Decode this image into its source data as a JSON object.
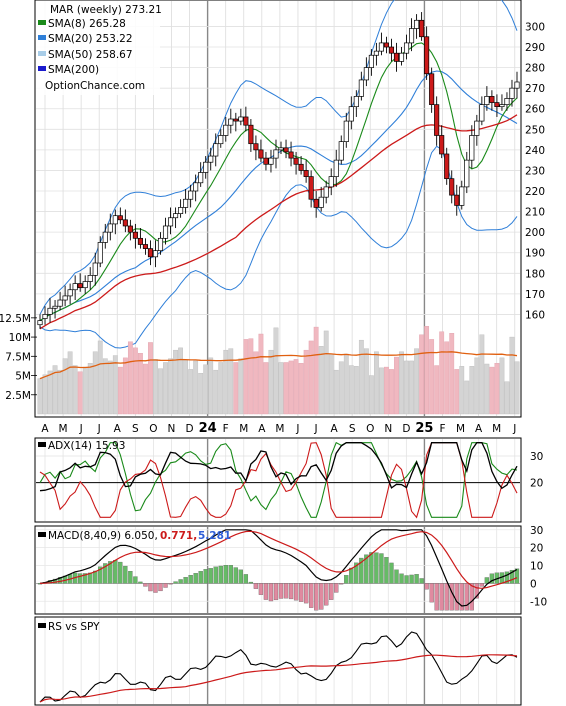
{
  "header": {
    "symbol_label": "MAR (weekly) 273.21",
    "brand": "OptionChance.com"
  },
  "legend": [
    {
      "label": "SMA(8) 265.28",
      "color": "#1a8a1a"
    },
    {
      "label": "SMA(20) 253.22",
      "color": "#2f7fd8"
    },
    {
      "label": "SMA(50) 258.67",
      "color": "#a8cde8"
    },
    {
      "label": "SMA(200)",
      "color": "#1a1acc"
    }
  ],
  "colors": {
    "up_candle": "#ffffff",
    "down_candle": "#cc1a1a",
    "upper_band": "#2f7fd8",
    "sma50": "#cc1a1a",
    "volume_up": "#d4d4d4",
    "volume_down": "#f0b8c0",
    "volume_avg": "#e06010",
    "adx": "#000000",
    "plus_di": "#1a8a1a",
    "minus_di": "#cc1a1a",
    "macd_line": "#000000",
    "macd_signal": "#cc1a1a",
    "hist_pos": "#66bb66",
    "hist_neg": "#e08aa0",
    "rs_line": "#000000",
    "rs_ma": "#cc1a1a"
  },
  "x_axis": {
    "month_labels": [
      "A",
      "M",
      "J",
      "J",
      "A",
      "S",
      "O",
      "N",
      "D",
      "24",
      "F",
      "M",
      "A",
      "M",
      "J",
      "J",
      "A",
      "S",
      "O",
      "N",
      "D",
      "25",
      "F",
      "M",
      "A",
      "M",
      "J"
    ]
  },
  "chart_data": [
    {
      "type": "candlestick",
      "y_ticks": [
        160,
        170,
        180,
        190,
        200,
        210,
        220,
        230,
        240,
        250,
        260,
        270,
        280,
        290,
        300
      ],
      "ylim": [
        150,
        308
      ],
      "close": [
        157,
        160,
        163,
        164,
        167,
        169,
        172,
        175,
        173,
        176,
        179,
        185,
        195,
        200,
        204,
        208,
        206,
        203,
        200,
        197,
        194,
        192,
        188,
        191,
        197,
        203,
        207,
        209,
        212,
        216,
        220,
        224,
        229,
        234,
        237,
        243,
        247,
        252,
        255,
        254,
        256,
        252,
        243,
        240,
        236,
        233,
        236,
        240,
        241,
        239,
        236,
        233,
        230,
        227,
        216,
        212,
        217,
        222,
        227,
        235,
        244,
        254,
        261,
        266,
        274,
        280,
        286,
        288,
        292,
        290,
        287,
        283,
        287,
        292,
        299,
        303,
        295,
        277,
        262,
        247,
        238,
        226,
        218,
        213,
        222,
        235,
        247,
        254,
        262,
        266,
        263,
        261,
        262,
        265,
        270,
        273
      ],
      "open_offset": [
        -2,
        -2,
        -3,
        -1,
        -3,
        -2,
        -3,
        -3,
        2,
        -3,
        -3,
        -6,
        -10,
        -5,
        -4,
        -4,
        2,
        3,
        3,
        3,
        3,
        2,
        4,
        -3,
        -6,
        -6,
        -4,
        -2,
        -3,
        -4,
        -4,
        -4,
        -5,
        -5,
        -3,
        -6,
        -4,
        -5,
        -3,
        1,
        -2,
        4,
        9,
        3,
        4,
        3,
        -3,
        -4,
        -1,
        2,
        3,
        3,
        3,
        3,
        11,
        4,
        -5,
        -5,
        -5,
        -8,
        -9,
        -10,
        -7,
        -5,
        -8,
        -6,
        -6,
        -2,
        -4,
        2,
        3,
        4,
        -4,
        -5,
        -7,
        -4,
        8,
        18,
        15,
        15,
        9,
        12,
        8,
        5,
        -9,
        -13,
        -12,
        -7,
        -8,
        -4,
        3,
        2,
        -1,
        -3,
        -5,
        -3
      ]
    },
    {
      "type": "bar",
      "name": "Volume",
      "y_ticks": [
        "2.5M",
        "5M",
        "7.5M",
        "10M",
        "12.5M"
      ],
      "tick_values": [
        2.5,
        5,
        7.5,
        10,
        12.5
      ],
      "ylim": [
        0,
        13
      ],
      "values": [
        4.6,
        5.1,
        5.6,
        6.3,
        5.7,
        7.2,
        8.1,
        6.3,
        5.5,
        6.1,
        6.6,
        8.1,
        9.5,
        7.2,
        6.9,
        7.6,
        6.1,
        7.3,
        9.4,
        8.6,
        7.9,
        6.5,
        9.3,
        7.1,
        5.9,
        6.7,
        7.2,
        8.3,
        8.6,
        7.0,
        5.8,
        6.9,
        5.3,
        6.4,
        7.3,
        5.7,
        6.7,
        8.3,
        8.5,
        6.7,
        7.2,
        9.7,
        9.8,
        8.1,
        10.4,
        6.7,
        8.3,
        11.2,
        6.7,
        6.7,
        6.9,
        7.1,
        6.6,
        8.3,
        9.5,
        11.3,
        8.8,
        10.8,
        7.8,
        5.7,
        6.8,
        7.8,
        6.3,
        6.2,
        9.6,
        8.5,
        5.0,
        8.1,
        6.0,
        6.1,
        5.8,
        7.4,
        8.1,
        6.9,
        6.9,
        8.5,
        10.3,
        11.4,
        9.7,
        6.3,
        10.7,
        9.4,
        10.5,
        5.8,
        6.2,
        4.3,
        6.2,
        7.3,
        10.3,
        6.5,
        6.1,
        6.6,
        7.3,
        4.2,
        10.0,
        6.8
      ]
    },
    {
      "type": "line",
      "name": "ADX",
      "label": "ADX(14) 15.93",
      "y_ticks": [
        20,
        30
      ],
      "ylim": [
        6,
        36
      ]
    },
    {
      "type": "bar",
      "name": "MACD",
      "label_prefix": "MACD(8,40,9) 6.050,",
      "label_value_a": "0.771,",
      "label_value_b": "5.281",
      "y_ticks": [
        -10,
        0,
        10,
        20,
        30
      ],
      "ylim": [
        -16,
        31
      ]
    },
    {
      "type": "line",
      "name": "RS",
      "label": "RS vs SPY"
    }
  ]
}
